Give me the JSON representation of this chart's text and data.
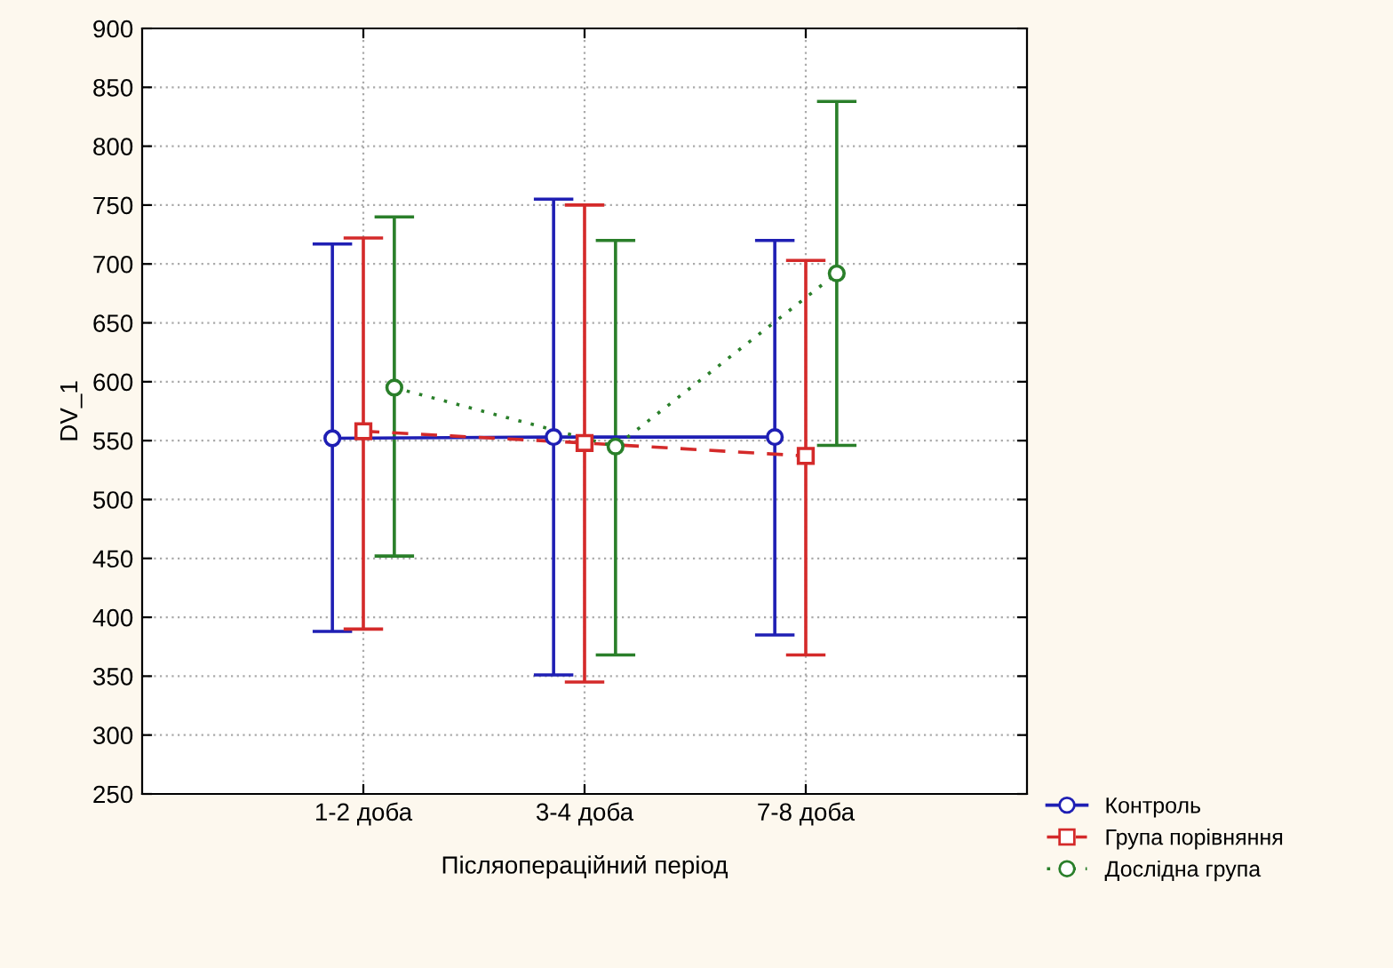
{
  "chart_data": {
    "type": "line",
    "xlabel": "Післяопераційний період",
    "ylabel": "DV_1",
    "categories": [
      "1-2 доба",
      "3-4 доба",
      "7-8 доба"
    ],
    "ylim": [
      250,
      900
    ],
    "yticks": [
      250,
      300,
      350,
      400,
      450,
      500,
      550,
      600,
      650,
      700,
      750,
      800,
      850,
      900
    ],
    "grid": true,
    "legend": "bottom right",
    "series": [
      {
        "name": "Контроль",
        "color": "#1f1fb4",
        "marker": "circle",
        "line_style": "solid",
        "values": [
          552,
          553,
          553
        ],
        "errors": [
          [
            388,
            717
          ],
          [
            351,
            755
          ],
          [
            385,
            720
          ]
        ]
      },
      {
        "name": "Група порівняння",
        "color": "#d42a2a",
        "marker": "square",
        "line_style": "dashed",
        "values": [
          558,
          548,
          537
        ],
        "errors": [
          [
            390,
            722
          ],
          [
            345,
            750
          ],
          [
            368,
            703
          ]
        ]
      },
      {
        "name": "Дослідна група",
        "color": "#2a7f2a",
        "marker": "circle",
        "line_style": "dotted",
        "values": [
          595,
          545,
          692
        ],
        "errors": [
          [
            452,
            740
          ],
          [
            368,
            720
          ],
          [
            546,
            838
          ]
        ]
      }
    ]
  }
}
